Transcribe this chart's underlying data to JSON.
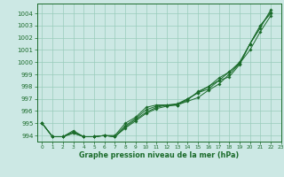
{
  "xlabel": "Graphe pression niveau de la mer (hPa)",
  "bg_color": "#cce8e4",
  "grid_color": "#99ccbb",
  "line_color": "#1a6b2a",
  "xlim": [
    -0.5,
    23
  ],
  "ylim": [
    993.5,
    1004.8
  ],
  "yticks": [
    994,
    995,
    996,
    997,
    998,
    999,
    1000,
    1001,
    1002,
    1003,
    1004
  ],
  "xticks": [
    0,
    1,
    2,
    3,
    4,
    5,
    6,
    7,
    8,
    9,
    10,
    11,
    12,
    13,
    14,
    15,
    16,
    17,
    18,
    19,
    20,
    21,
    22,
    23
  ],
  "series": [
    [
      995.0,
      993.9,
      993.9,
      994.4,
      993.9,
      993.9,
      994.0,
      994.0,
      995.0,
      995.5,
      996.3,
      996.5,
      996.5,
      996.5,
      997.0,
      997.5,
      997.8,
      998.5,
      998.8,
      999.8,
      1001.5,
      1002.8,
      1004.3
    ],
    [
      995.0,
      993.9,
      993.9,
      994.3,
      993.9,
      993.9,
      994.0,
      993.9,
      994.8,
      995.4,
      996.1,
      996.4,
      996.5,
      996.6,
      997.0,
      997.5,
      998.0,
      998.7,
      999.2,
      1000.0,
      1001.5,
      1003.0,
      1004.1
    ],
    [
      995.0,
      993.9,
      993.9,
      994.2,
      993.9,
      993.9,
      994.0,
      993.9,
      994.7,
      995.3,
      995.9,
      996.3,
      996.5,
      996.5,
      996.8,
      997.1,
      997.7,
      998.2,
      999.0,
      999.9,
      1001.0,
      1002.5,
      1003.8
    ],
    [
      995.0,
      993.9,
      993.9,
      994.2,
      993.9,
      993.9,
      994.0,
      993.9,
      994.6,
      995.2,
      995.8,
      996.2,
      996.4,
      996.5,
      996.9,
      997.6,
      998.0,
      998.5,
      999.2,
      999.9,
      1001.5,
      1003.0,
      1004.0
    ]
  ]
}
